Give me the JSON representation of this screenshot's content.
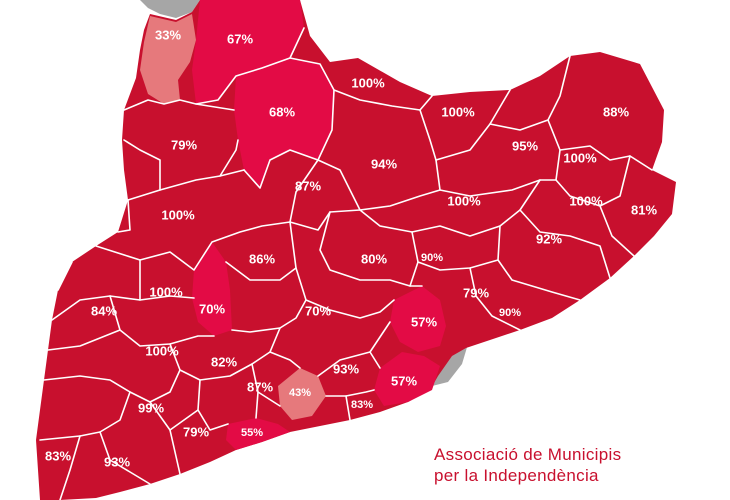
{
  "colors": {
    "background": "#ffffff",
    "region_dark": "#c8102e",
    "region_medium": "#e30b45",
    "region_light": "#e6797c",
    "outside_gray": "#a6a6a6",
    "border": "#ffffff",
    "legend_text": "#c8102e"
  },
  "legend": {
    "line1": "Associació de Municipis",
    "line2": "per la Independència"
  },
  "regions": [
    {
      "label": "33%",
      "value": 33,
      "shade": "light"
    },
    {
      "label": "67%",
      "value": 67,
      "shade": "medium"
    },
    {
      "label": "100%",
      "value": 100,
      "shade": "dark"
    },
    {
      "label": "68%",
      "value": 68,
      "shade": "medium"
    },
    {
      "label": "100%",
      "value": 100,
      "shade": "dark"
    },
    {
      "label": "88%",
      "value": 88,
      "shade": "dark"
    },
    {
      "label": "79%",
      "value": 79,
      "shade": "dark"
    },
    {
      "label": "95%",
      "value": 95,
      "shade": "dark"
    },
    {
      "label": "94%",
      "value": 94,
      "shade": "dark"
    },
    {
      "label": "100%",
      "value": 100,
      "shade": "dark"
    },
    {
      "label": "87%",
      "value": 87,
      "shade": "dark"
    },
    {
      "label": "100%",
      "value": 100,
      "shade": "dark"
    },
    {
      "label": "100%",
      "value": 100,
      "shade": "dark"
    },
    {
      "label": "100%",
      "value": 100,
      "shade": "dark"
    },
    {
      "label": "81%",
      "value": 81,
      "shade": "dark"
    },
    {
      "label": "92%",
      "value": 92,
      "shade": "dark"
    },
    {
      "label": "90%",
      "value": 90,
      "shade": "dark"
    },
    {
      "label": "86%",
      "value": 86,
      "shade": "dark"
    },
    {
      "label": "80%",
      "value": 80,
      "shade": "dark"
    },
    {
      "label": "100%",
      "value": 100,
      "shade": "dark"
    },
    {
      "label": "70%",
      "value": 70,
      "shade": "medium"
    },
    {
      "label": "84%",
      "value": 84,
      "shade": "dark"
    },
    {
      "label": "79%",
      "value": 79,
      "shade": "dark"
    },
    {
      "label": "70%",
      "value": 70,
      "shade": "dark"
    },
    {
      "label": "57%",
      "value": 57,
      "shade": "medium"
    },
    {
      "label": "90%",
      "value": 90,
      "shade": "dark"
    },
    {
      "label": "100%",
      "value": 100,
      "shade": "dark"
    },
    {
      "label": "82%",
      "value": 82,
      "shade": "dark"
    },
    {
      "label": "93%",
      "value": 93,
      "shade": "dark"
    },
    {
      "label": "87%",
      "value": 87,
      "shade": "dark"
    },
    {
      "label": "57%",
      "value": 57,
      "shade": "medium"
    },
    {
      "label": "43%",
      "value": 43,
      "shade": "light"
    },
    {
      "label": "99%",
      "value": 99,
      "shade": "dark"
    },
    {
      "label": "83%",
      "value": 83,
      "shade": "dark"
    },
    {
      "label": "79%",
      "value": 79,
      "shade": "dark"
    },
    {
      "label": "55%",
      "value": 55,
      "shade": "medium"
    },
    {
      "label": "83%",
      "value": 83,
      "shade": "dark"
    },
    {
      "label": "93%",
      "value": 93,
      "shade": "dark"
    }
  ]
}
